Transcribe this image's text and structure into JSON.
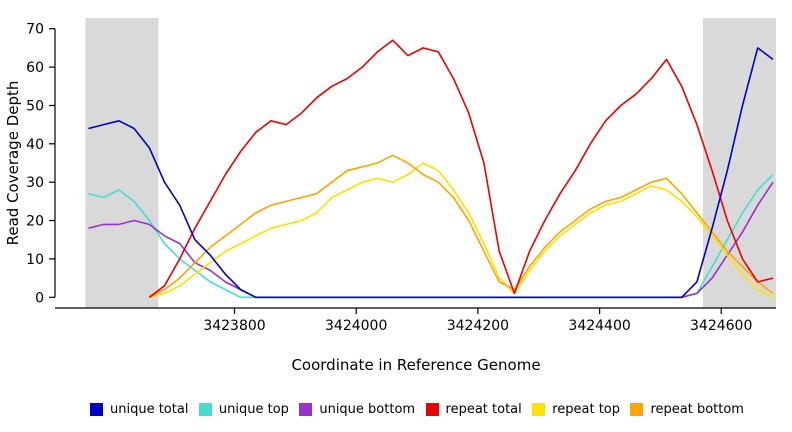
{
  "chart_data": {
    "type": "line",
    "xlabel": "Coordinate in Reference Genome",
    "ylabel": "Read Coverage Depth",
    "x_axis_range": [
      3423505,
      3424690
    ],
    "ylim": [
      0,
      70
    ],
    "x_ticks": [
      3423800,
      3424000,
      3424200,
      3424400,
      3424600
    ],
    "y_ticks": [
      0,
      10,
      20,
      30,
      40,
      50,
      60,
      70
    ],
    "grid": false,
    "legend_position": "bottom",
    "shade_color": "#d9d9d9",
    "shaded_regions": [
      [
        3423555,
        3423675
      ],
      [
        3424570,
        3424690
      ]
    ],
    "series": [
      {
        "name": "unique total",
        "color": "#0000cd",
        "x_start": 3423560,
        "x_step": 25,
        "values": [
          44,
          45,
          46,
          44,
          39,
          30,
          24,
          15,
          11,
          6,
          2,
          0,
          0,
          0,
          0,
          0,
          0,
          0,
          0,
          0,
          0,
          0,
          0,
          0,
          0,
          0,
          0,
          0,
          0,
          0,
          0,
          0,
          0,
          0,
          0,
          0,
          0,
          0,
          0,
          0,
          4,
          18,
          33,
          50,
          65,
          62
        ]
      },
      {
        "name": "unique top",
        "color": "#40e0d0",
        "x_start": 3423560,
        "x_step": 25,
        "values": [
          27,
          26,
          28,
          25,
          20,
          14,
          10,
          7,
          4,
          2,
          0,
          0,
          0,
          0,
          0,
          0,
          0,
          0,
          0,
          0,
          0,
          0,
          0,
          0,
          0,
          0,
          0,
          0,
          0,
          0,
          0,
          0,
          0,
          0,
          0,
          0,
          0,
          0,
          0,
          0,
          1,
          8,
          15,
          22,
          28,
          32
        ]
      },
      {
        "name": "unique bottom",
        "color": "#9932cc",
        "x_start": 3423560,
        "x_step": 25,
        "values": [
          18,
          19,
          19,
          20,
          19,
          16,
          14,
          9,
          7,
          4,
          2,
          0,
          0,
          0,
          0,
          0,
          0,
          0,
          0,
          0,
          0,
          0,
          0,
          0,
          0,
          0,
          0,
          0,
          0,
          0,
          0,
          0,
          0,
          0,
          0,
          0,
          0,
          0,
          0,
          0,
          1,
          5,
          11,
          17,
          24,
          30
        ]
      },
      {
        "name": "repeat total",
        "color": "#ee0000",
        "x_start": 3423660,
        "x_step": 25,
        "values": [
          0,
          3,
          10,
          18,
          25,
          32,
          38,
          43,
          46,
          45,
          48,
          52,
          55,
          57,
          60,
          64,
          67,
          63,
          65,
          64,
          57,
          48,
          35,
          12,
          1,
          12,
          20,
          27,
          33,
          40,
          46,
          50,
          53,
          57,
          62,
          55,
          45,
          33,
          20,
          10,
          4,
          5
        ]
      },
      {
        "name": "repeat top",
        "color": "#ffe100",
        "x_start": 3423660,
        "x_step": 25,
        "values": [
          0,
          1,
          3,
          6,
          9,
          12,
          14,
          16,
          18,
          19,
          20,
          22,
          26,
          28,
          30,
          31,
          30,
          32,
          35,
          33,
          28,
          22,
          14,
          5,
          1,
          7,
          12,
          16,
          19,
          22,
          24,
          25,
          27,
          29,
          28,
          25,
          21,
          16,
          11,
          6,
          2,
          0
        ]
      },
      {
        "name": "repeat bottom",
        "color": "#ffa500",
        "x_start": 3423660,
        "x_step": 25,
        "values": [
          0,
          2,
          5,
          9,
          13,
          16,
          19,
          22,
          24,
          25,
          26,
          27,
          30,
          33,
          34,
          35,
          37,
          35,
          32,
          30,
          26,
          20,
          12,
          4,
          2,
          8,
          13,
          17,
          20,
          23,
          25,
          26,
          28,
          30,
          31,
          27,
          22,
          17,
          12,
          8,
          4,
          1
        ]
      }
    ]
  }
}
